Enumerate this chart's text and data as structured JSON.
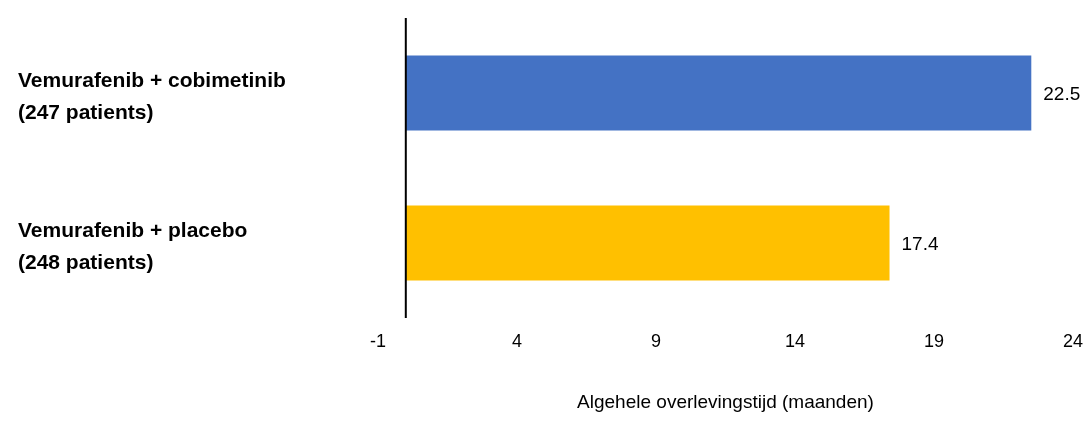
{
  "chart_data": {
    "type": "bar",
    "orientation": "horizontal",
    "xlabel": "Algehele overlevingstijd (maanden)",
    "categories": [
      "Vemurafenib + cobimetinib\n(247 patients)",
      "Vemurafenib + placebo\n(248 patients)"
    ],
    "values": [
      22.5,
      17.4
    ],
    "colors": [
      "#4472c4",
      "#ffc000"
    ],
    "xlim": [
      -1,
      24
    ],
    "xticks": [
      -1,
      4,
      9,
      14,
      19,
      24
    ],
    "grid": false,
    "data_labels": true
  }
}
